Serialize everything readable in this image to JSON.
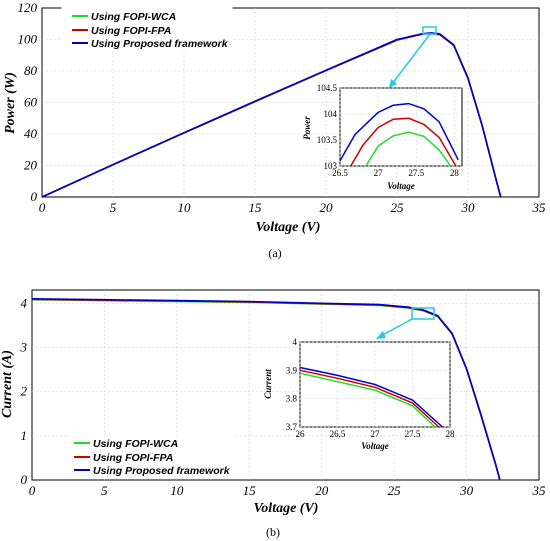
{
  "colors": {
    "series": [
      "#22dd22",
      "#cc0000",
      "#0000cc"
    ],
    "callout": "#22c8e8",
    "grid": "#cfcfcf"
  },
  "chart_data": [
    {
      "type": "line",
      "caption": "(a)",
      "xlabel": "Voltage (V)",
      "ylabel": "Power (W)",
      "xlim": [
        0,
        35
      ],
      "ylim": [
        0,
        120
      ],
      "xticks": [
        0,
        5,
        10,
        15,
        20,
        25,
        30,
        35
      ],
      "yticks": [
        0,
        20,
        40,
        60,
        80,
        100,
        120
      ],
      "grid": true,
      "legend_position": "top-left",
      "series": [
        {
          "name": "Using FOPI-WCA",
          "x": [
            0,
            5,
            10,
            15,
            20,
            25,
            26.5,
            27,
            27.4,
            28,
            29,
            30,
            31,
            32,
            32.3
          ],
          "y": [
            0,
            20.4,
            40.6,
            60.5,
            80.2,
            99.4,
            103.0,
            103.5,
            103.65,
            103.0,
            96,
            75,
            45,
            10,
            0
          ]
        },
        {
          "name": "Using FOPI-FPA",
          "x": [
            0,
            5,
            10,
            15,
            20,
            25,
            26.6,
            27,
            27.4,
            28,
            29,
            30,
            31,
            32,
            32.3
          ],
          "y": [
            0,
            20.5,
            40.7,
            60.6,
            80.3,
            99.7,
            103.0,
            103.7,
            103.92,
            103.25,
            96.3,
            75.3,
            45.2,
            10.2,
            0
          ]
        },
        {
          "name": "Using Proposed framework",
          "x": [
            0,
            5,
            10,
            15,
            20,
            25,
            26.5,
            27,
            27.4,
            28,
            29,
            30,
            31,
            32,
            32.3
          ],
          "y": [
            0,
            20.6,
            40.8,
            60.8,
            80.5,
            100.0,
            103.1,
            103.9,
            104.2,
            103.6,
            96.6,
            75.6,
            45.4,
            10.4,
            0
          ]
        }
      ],
      "inset": {
        "xlabel": "Voltage",
        "ylabel": "Power",
        "xlim": [
          26.5,
          28.1
        ],
        "ylim": [
          103,
          104.5
        ],
        "xticks": [
          26.5,
          27,
          27.5,
          28
        ],
        "yticks": [
          103,
          103.5,
          104,
          104.5
        ],
        "series": [
          {
            "x": [
              26.84,
              27.0,
              27.2,
              27.4,
              27.6,
              27.8,
              27.95
            ],
            "y": [
              103.0,
              103.38,
              103.58,
              103.65,
              103.57,
              103.31,
              103.0
            ]
          },
          {
            "x": [
              26.64,
              26.8,
              27.0,
              27.2,
              27.4,
              27.6,
              27.8,
              28.02
            ],
            "y": [
              103.0,
              103.4,
              103.74,
              103.9,
              103.92,
              103.8,
              103.55,
              103.0
            ]
          },
          {
            "x": [
              26.5,
              26.7,
              27.0,
              27.2,
              27.4,
              27.6,
              27.8,
              28.05
            ],
            "y": [
              103.1,
              103.61,
              104.03,
              104.17,
              104.2,
              104.1,
              103.85,
              103.12
            ]
          }
        ]
      }
    },
    {
      "type": "line",
      "caption": "(b)",
      "xlabel": "Voltage (V)",
      "ylabel": "Current (A)",
      "xlim": [
        0,
        35
      ],
      "ylim": [
        0,
        4.3
      ],
      "xticks": [
        0,
        5,
        10,
        15,
        20,
        25,
        30,
        35
      ],
      "yticks": [
        0,
        1,
        2,
        3,
        4
      ],
      "grid": true,
      "legend_position": "bottom-left",
      "series": [
        {
          "name": "Using FOPI-WCA",
          "x": [
            0,
            5,
            10,
            15,
            20,
            24,
            26,
            27,
            28,
            29,
            30,
            31,
            32,
            32.3
          ],
          "y": [
            4.08,
            4.06,
            4.04,
            4.02,
            3.98,
            3.95,
            3.89,
            3.83,
            3.7,
            3.3,
            2.5,
            1.45,
            0.35,
            0
          ]
        },
        {
          "name": "Using FOPI-FPA",
          "x": [
            0,
            5,
            10,
            15,
            20,
            24,
            26,
            27,
            28,
            29,
            30,
            31,
            32,
            32.3
          ],
          "y": [
            4.09,
            4.07,
            4.05,
            4.03,
            3.99,
            3.96,
            3.9,
            3.84,
            3.71,
            3.31,
            2.51,
            1.46,
            0.36,
            0
          ]
        },
        {
          "name": "Using Proposed framework",
          "x": [
            0,
            5,
            10,
            15,
            20,
            24,
            26,
            27,
            28,
            29,
            30,
            31,
            32,
            32.3
          ],
          "y": [
            4.1,
            4.08,
            4.06,
            4.04,
            4.0,
            3.97,
            3.91,
            3.85,
            3.72,
            3.32,
            2.52,
            1.47,
            0.37,
            0
          ]
        }
      ],
      "inset": {
        "xlabel": "Voltage",
        "ylabel": "Current",
        "xlim": [
          26,
          28
        ],
        "ylim": [
          3.7,
          4
        ],
        "xticks": [
          26,
          26.5,
          27,
          27.5,
          28
        ],
        "yticks": [
          3.7,
          3.8,
          3.9,
          4
        ],
        "series": [
          {
            "x": [
              26,
              26.5,
              27,
              27.5,
              27.8
            ],
            "y": [
              3.89,
              3.86,
              3.83,
              3.775,
              3.7
            ]
          },
          {
            "x": [
              26,
              26.5,
              27,
              27.5,
              27.85
            ],
            "y": [
              3.9,
              3.872,
              3.84,
              3.785,
              3.7
            ]
          },
          {
            "x": [
              26,
              26.5,
              27,
              27.5,
              27.9
            ],
            "y": [
              3.91,
              3.882,
              3.85,
              3.795,
              3.7
            ]
          }
        ]
      }
    }
  ]
}
